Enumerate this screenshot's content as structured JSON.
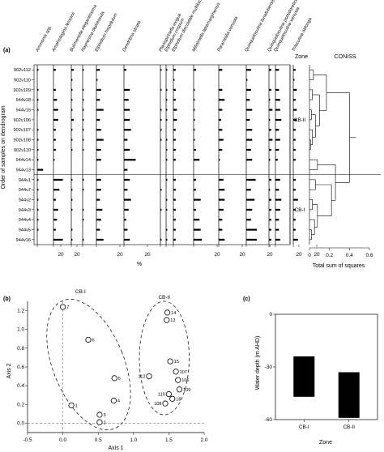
{
  "chart_data": [
    {
      "panel_label": "(a)",
      "type": "bar",
      "x_unit_label": "%",
      "ylabel": "Order of samples on dendrogram",
      "rows": [
        "902v112",
        "902v110",
        "902v109",
        "944v18",
        "944v15",
        "902v106",
        "902v107",
        "902v108",
        "902v110",
        "944v14",
        "944v13",
        "944v1",
        "944v7",
        "944v2",
        "944v3",
        "944v4",
        "944v5",
        "944v16"
      ],
      "species": [
        {
          "name": "Ammonia spp.",
          "tick": "20",
          "values": [
            1,
            0,
            1,
            1,
            1,
            0,
            1,
            1,
            1,
            1,
            5,
            1,
            1,
            1,
            1,
            1,
            1,
            0
          ]
        },
        {
          "name": "Amphistegina lessonii",
          "tick": "20",
          "values": [
            2,
            0,
            2,
            3,
            4,
            4,
            2,
            2,
            2,
            1,
            0,
            8,
            5,
            2,
            4,
            3,
            2,
            8
          ]
        },
        {
          "name": "Bulimenella elegantissima",
          "tick": "",
          "values": [
            2,
            1,
            1,
            1,
            1,
            2,
            1,
            1,
            1,
            0,
            0,
            1,
            1,
            1,
            1,
            0,
            1,
            1
          ]
        },
        {
          "name": "Haynesina depressula",
          "tick": "",
          "values": [
            1,
            0,
            1,
            1,
            1,
            1,
            1,
            1,
            1,
            0,
            0,
            1,
            1,
            0,
            1,
            1,
            0,
            1
          ]
        },
        {
          "name": "Elphidium hispidulum",
          "tick": "20",
          "values": [
            3,
            1,
            4,
            3,
            6,
            3,
            4,
            6,
            4,
            4,
            0,
            4,
            4,
            3,
            5,
            4,
            3,
            6
          ]
        },
        {
          "name": "Dendritina striata",
          "tick": "20",
          "values": [
            2,
            0,
            5,
            4,
            5,
            5,
            6,
            3,
            5,
            10,
            3,
            5,
            3,
            6,
            4,
            2,
            3,
            5
          ]
        },
        {
          "name": "Planispirinella exigua",
          "tick": "",
          "values": [
            1,
            0,
            1,
            0,
            1,
            1,
            1,
            1,
            0,
            0,
            0,
            0,
            1,
            0,
            1,
            0,
            0,
            1
          ]
        },
        {
          "name": "Elphidium crispum",
          "tick": "",
          "values": [
            1,
            0,
            1,
            1,
            1,
            1,
            0,
            1,
            1,
            1,
            0,
            1,
            0,
            1,
            1,
            0,
            1,
            1
          ]
        },
        {
          "name": "Elphidium discoidale multiloculum",
          "tick": "",
          "values": [
            2,
            1,
            2,
            2,
            3,
            3,
            2,
            2,
            2,
            2,
            0,
            2,
            2,
            2,
            2,
            2,
            2,
            2
          ]
        },
        {
          "name": "Miliolinella lakemarginensis",
          "tick": "20",
          "values": [
            2,
            0,
            1,
            1,
            1,
            1,
            1,
            1,
            2,
            5,
            0,
            2,
            2,
            6,
            2,
            5,
            6,
            7
          ]
        },
        {
          "name": "Pararotalia venusta",
          "tick": "20",
          "values": [
            3,
            0,
            3,
            5,
            3,
            2,
            3,
            4,
            3,
            1,
            0,
            4,
            5,
            5,
            4,
            3,
            3,
            5
          ]
        },
        {
          "name": "Quinqueloculina funafutiensis",
          "tick": "20",
          "values": [
            4,
            1,
            4,
            3,
            5,
            3,
            5,
            5,
            4,
            5,
            0,
            8,
            4,
            7,
            5,
            4,
            9,
            9
          ]
        },
        {
          "name": "Quinqueloculina pseudoreticulata",
          "tick": "",
          "values": [
            2,
            0,
            2,
            1,
            3,
            1,
            2,
            3,
            2,
            1,
            0,
            2,
            1,
            2,
            2,
            2,
            2,
            2
          ]
        },
        {
          "name": "Quinqueloculina venusta",
          "tick": "20",
          "values": [
            3,
            0,
            3,
            4,
            4,
            5,
            3,
            4,
            3,
            2,
            0,
            4,
            3,
            5,
            4,
            3,
            3,
            4
          ]
        },
        {
          "name": "Triloculina oblonga",
          "tick": "20",
          "values": [
            2,
            1,
            3,
            2,
            3,
            3,
            2,
            2,
            2,
            2,
            0,
            2,
            2,
            4,
            2,
            2,
            2,
            4
          ]
        }
      ],
      "zone_title": "Zone",
      "zones": [
        {
          "name": "CB-II",
          "from_row": 0,
          "to_row": 10
        },
        {
          "name": "CB-I",
          "from_row": 11,
          "to_row": 17
        }
      ],
      "coniss": {
        "title": "CONISS",
        "xlabel": "Total sum of squares",
        "x_ticks": [
          "0",
          "0.2",
          "0.4",
          "0.6"
        ],
        "xlim": [
          0,
          0.6
        ]
      }
    },
    {
      "panel_label": "(b)",
      "type": "scatter",
      "xlabel": "Axis 1",
      "ylabel": "Axis 2",
      "xlim": [
        -0.5,
        2.0
      ],
      "ylim": [
        -0.1,
        1.3
      ],
      "x_ticks": [
        "-0.5",
        "0.0",
        "0.5",
        "1.0",
        "1.5",
        "2.0"
      ],
      "y_ticks": [
        "0.0",
        "0.2",
        "0.4",
        "0.6",
        "0.8",
        "1.0",
        "1.2"
      ],
      "groups": [
        {
          "name": "CB-I",
          "points": [
            {
              "label": "7",
              "x": 0.0,
              "y": 1.24
            },
            {
              "label": "6",
              "x": 0.36,
              "y": 0.89
            },
            {
              "label": "5",
              "x": 0.73,
              "y": 0.48
            },
            {
              "label": "4",
              "x": 0.72,
              "y": 0.24
            },
            {
              "label": "1",
              "x": 0.12,
              "y": 0.19
            },
            {
              "label": "3",
              "x": 0.52,
              "y": 0.09
            },
            {
              "label": "2",
              "x": 0.52,
              "y": 0.01
            }
          ]
        },
        {
          "name": "CB-II",
          "points": [
            {
              "label": "14",
              "x": 1.48,
              "y": 1.18
            },
            {
              "label": "13",
              "x": 1.47,
              "y": 1.1
            },
            {
              "label": "15",
              "x": 1.52,
              "y": 0.66
            },
            {
              "label": "107",
              "x": 1.6,
              "y": 0.55
            },
            {
              "label": "112",
              "x": 1.22,
              "y": 0.5
            },
            {
              "label": "106",
              "x": 1.63,
              "y": 0.46
            },
            {
              "label": "109",
              "x": 1.65,
              "y": 0.36
            },
            {
              "label": "110",
              "x": 1.5,
              "y": 0.31
            },
            {
              "label": "18",
              "x": 1.55,
              "y": 0.26
            },
            {
              "label": "108",
              "x": 1.45,
              "y": 0.21
            }
          ]
        }
      ]
    },
    {
      "panel_label": "(c)",
      "type": "bar",
      "xlabel": "Zone",
      "ylabel": "Water depth (m AHD)",
      "ylim": [
        -60,
        0
      ],
      "y_ticks": [
        "0",
        "-30",
        "-60"
      ],
      "categories": [
        "CB-I",
        "CB-II"
      ],
      "ranges": [
        [
          -47,
          -24
        ],
        [
          -59,
          -33
        ]
      ]
    }
  ]
}
